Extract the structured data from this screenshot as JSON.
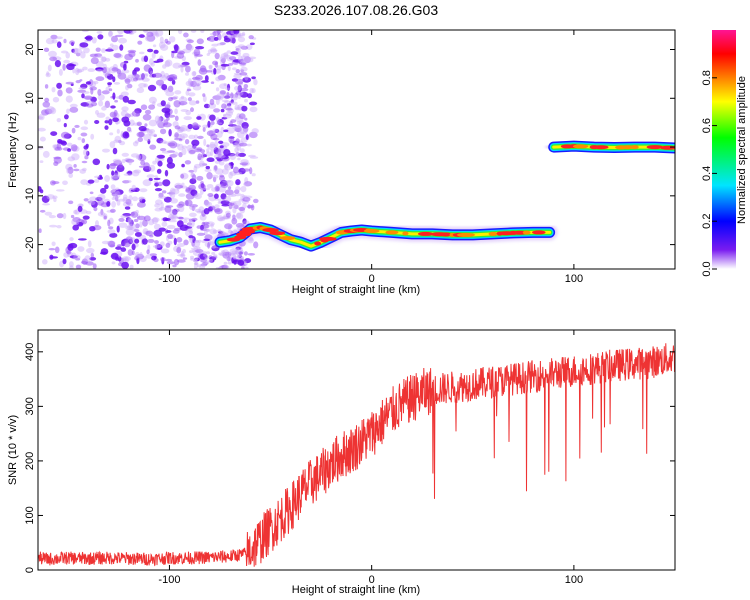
{
  "title": "S233.2026.107.08.26.G03",
  "chart_data": [
    {
      "type": "heatmap",
      "id": "spectrogram",
      "xlabel": "Height of straight line (km)",
      "ylabel": "Frequency (Hz)",
      "xlim": [
        -165,
        150
      ],
      "ylim": [
        -25,
        24
      ],
      "xticks": [
        -100,
        0,
        100
      ],
      "yticks": [
        -20,
        -10,
        0,
        10,
        20
      ],
      "noise_region": {
        "x_start": -165,
        "x_end": -62,
        "y_range": [
          -25,
          24
        ]
      },
      "signal_track": [
        {
          "x": -75,
          "y": -19.5
        },
        {
          "x": -70,
          "y": -19.2
        },
        {
          "x": -65,
          "y": -18.5
        },
        {
          "x": -60,
          "y": -16.8
        },
        {
          "x": -55,
          "y": -16.5
        },
        {
          "x": -50,
          "y": -17.0
        },
        {
          "x": -45,
          "y": -18.0
        },
        {
          "x": -40,
          "y": -19.0
        },
        {
          "x": -35,
          "y": -19.5
        },
        {
          "x": -30,
          "y": -20.3
        },
        {
          "x": -25,
          "y": -19.5
        },
        {
          "x": -20,
          "y": -18.5
        },
        {
          "x": -15,
          "y": -17.5
        },
        {
          "x": -10,
          "y": -17.2
        },
        {
          "x": -5,
          "y": -17.0
        },
        {
          "x": 0,
          "y": -17.2
        },
        {
          "x": 10,
          "y": -17.5
        },
        {
          "x": 20,
          "y": -17.8
        },
        {
          "x": 30,
          "y": -17.8
        },
        {
          "x": 40,
          "y": -18.0
        },
        {
          "x": 50,
          "y": -18.0
        },
        {
          "x": 60,
          "y": -17.8
        },
        {
          "x": 70,
          "y": -17.6
        },
        {
          "x": 80,
          "y": -17.5
        },
        {
          "x": 88,
          "y": -17.5
        }
      ],
      "signal_track_2": [
        {
          "x": 90,
          "y": 0.0
        },
        {
          "x": 100,
          "y": 0.2
        },
        {
          "x": 110,
          "y": 0.0
        },
        {
          "x": 120,
          "y": -0.1
        },
        {
          "x": 130,
          "y": 0.0
        },
        {
          "x": 140,
          "y": 0.0
        },
        {
          "x": 150,
          "y": -0.2
        }
      ],
      "colorbar": {
        "label": "Normalized spectral amplitude",
        "range": [
          0,
          1
        ],
        "ticks": [
          0.0,
          0.2,
          0.4,
          0.6,
          0.8
        ],
        "tick_labels": [
          "0.0",
          "0.2",
          "0.4",
          "0.6",
          "0.8"
        ]
      },
      "noise_color": "#7a1cf0",
      "colormap": [
        "#ffffff",
        "#6a00ff",
        "#0000ff",
        "#00e5ff",
        "#00ff00",
        "#ffff00",
        "#ff8000",
        "#ff0000",
        "#ff1493"
      ]
    },
    {
      "type": "line",
      "id": "snr",
      "xlabel": "Height of straight line (km)",
      "ylabel": "SNR (10 * v/v)",
      "xlim": [
        -165,
        150
      ],
      "ylim": [
        0,
        440
      ],
      "xticks": [
        -100,
        0,
        100
      ],
      "yticks": [
        0,
        100,
        200,
        300,
        400
      ],
      "color": "#ee3333",
      "series": [
        {
          "name": "SNR",
          "x": [
            -165,
            -160,
            -150,
            -140,
            -130,
            -120,
            -110,
            -100,
            -90,
            -80,
            -70,
            -62,
            -55,
            -50,
            -45,
            -40,
            -35,
            -30,
            -25,
            -20,
            -15,
            -10,
            -5,
            0,
            5,
            10,
            15,
            20,
            25,
            30,
            40,
            50,
            60,
            70,
            80,
            90,
            100,
            110,
            120,
            130,
            140,
            150
          ],
          "y": [
            22,
            20,
            22,
            21,
            22,
            21,
            20,
            22,
            22,
            23,
            25,
            30,
            55,
            75,
            95,
            115,
            140,
            160,
            175,
            195,
            210,
            220,
            235,
            250,
            270,
            290,
            305,
            315,
            325,
            330,
            335,
            340,
            345,
            350,
            355,
            360,
            365,
            370,
            375,
            378,
            382,
            390
          ]
        }
      ]
    }
  ]
}
